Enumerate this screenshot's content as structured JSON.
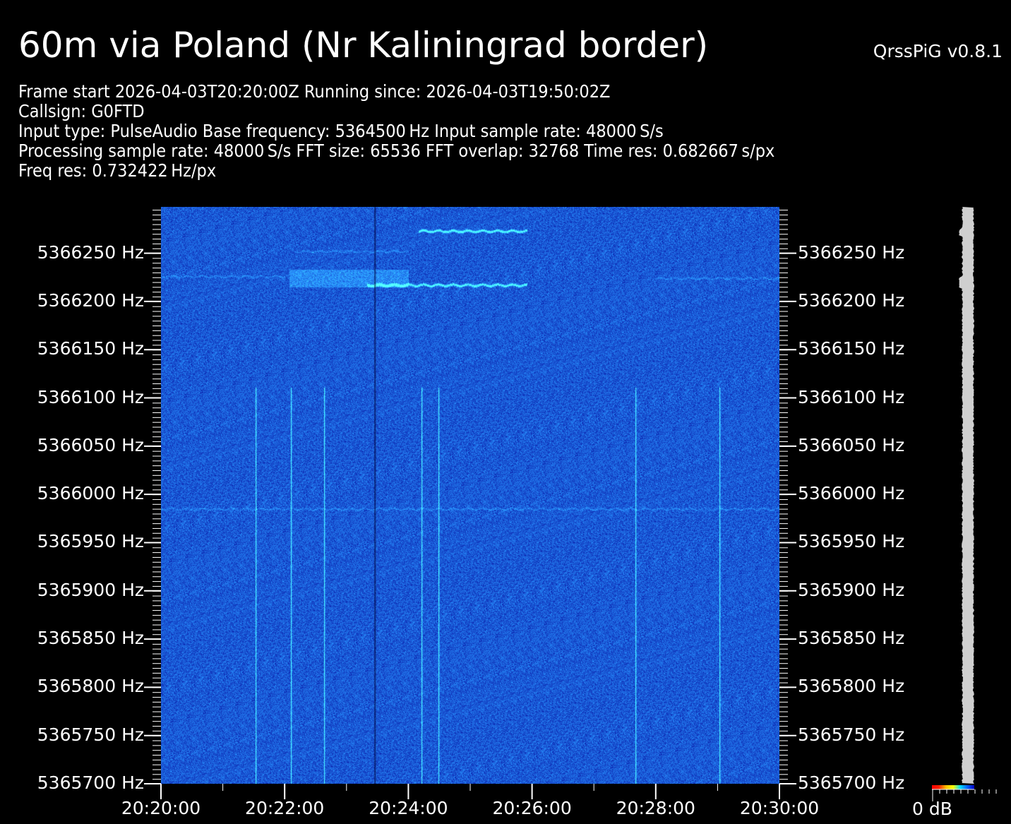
{
  "header": {
    "title": "60m via Poland (Nr Kaliningrad border)",
    "version": "QrssPiG v0.8.1",
    "info_lines": [
      "Frame start 2026-04-03T20:20:00Z Running since: 2026-04-03T19:50:02Z",
      "Callsign: G0FTD",
      "Input type: PulseAudio Base frequency: 5364500 Hz Input sample rate: 48000 S/s",
      "Processing sample rate: 48000 S/s FFT size: 65536 FFT overlap: 32768 Time res: 0.682667 s/px",
      "Freq res: 0.732422 Hz/px"
    ]
  },
  "chart_data": {
    "type": "heatmap",
    "title": "",
    "x_axis": {
      "range": [
        "20:20:00",
        "20:30:00"
      ],
      "tick_labels": [
        "20:20:00",
        "20:22:00",
        "20:24:00",
        "20:26:00",
        "20:28:00",
        "20:30:00"
      ],
      "minor_tick_interval_s": 60
    },
    "y_axis": {
      "range_hz": [
        5365700,
        5366298
      ],
      "tick_labels": [
        "5366250 Hz",
        "5366200 Hz",
        "5366150 Hz",
        "5366100 Hz",
        "5366050 Hz",
        "5366000 Hz",
        "5365950 Hz",
        "5365900 Hz",
        "5365850 Hz",
        "5365800 Hz",
        "5365750 Hz",
        "5365700 Hz"
      ],
      "tick_values_hz": [
        5366250,
        5366200,
        5366150,
        5366100,
        5366050,
        5366000,
        5365950,
        5365900,
        5365850,
        5365800,
        5365750,
        5365700
      ],
      "minor_tick_interval_hz": 5
    },
    "colormap": [
      "#ff0000",
      "#ff2000",
      "#ffc000",
      "#ffff00",
      "#00e0ff",
      "#0060ff",
      "#0000c0"
    ],
    "background_color": "#1a3ae0",
    "colorbar_label": "0 dB",
    "signals": [
      {
        "start": "20:24:10",
        "end": "20:25:55",
        "freq_hz": 5366273,
        "kind": "trace"
      },
      {
        "start": "20:22:10",
        "end": "20:24:00",
        "freq_hz": 5366252,
        "kind": "faint-trace"
      },
      {
        "start": "20:22:05",
        "end": "20:24:00",
        "freq_hz": 5366224,
        "kind": "block"
      },
      {
        "start": "20:23:20",
        "end": "20:25:55",
        "freq_hz": 5366217,
        "kind": "trace"
      },
      {
        "start": "20:20:00",
        "end": "20:22:00",
        "freq_hz": 5366226,
        "kind": "faint-trace"
      },
      {
        "start": "20:28:00",
        "end": "20:30:00",
        "freq_hz": 5366224,
        "kind": "faint-trace"
      },
      {
        "start": "20:20:00",
        "end": "20:30:00",
        "freq_hz": 5365985,
        "kind": "faint-trace"
      }
    ],
    "broadband_clicks": [
      "20:21:32",
      "20:22:06",
      "20:22:38",
      "20:24:13",
      "20:24:29",
      "20:27:40",
      "20:29:02"
    ],
    "dark_columns": [
      "20:23:27"
    ]
  }
}
